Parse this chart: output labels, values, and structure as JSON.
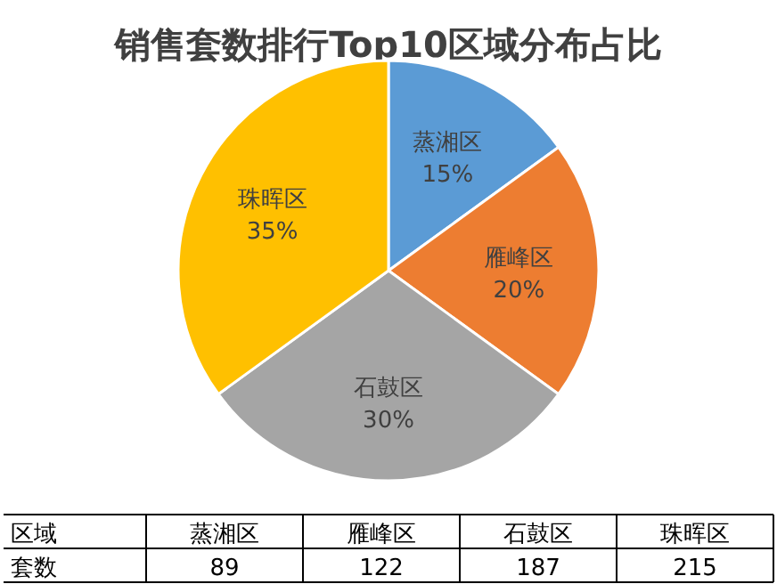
{
  "chart_data": [
    {
      "type": "pie",
      "title": "销售套数排行Top10区域分布占比",
      "categories": [
        "蒸湘区",
        "雁峰区",
        "石鼓区",
        "珠晖区"
      ],
      "values": [
        15,
        20,
        30,
        35
      ],
      "colors": [
        "#5b9bd5",
        "#ed7d31",
        "#a5a5a5",
        "#ffc000"
      ],
      "value_labels": [
        "15%",
        "20%",
        "30%",
        "35%"
      ]
    },
    {
      "type": "other",
      "categories": [
        "蒸湘区",
        "雁峰区",
        "石鼓区",
        "珠晖区"
      ],
      "values": [
        89,
        122,
        187,
        215
      ],
      "data_labels": true,
      "annotations": [
        "区域",
        "套数"
      ]
    }
  ]
}
